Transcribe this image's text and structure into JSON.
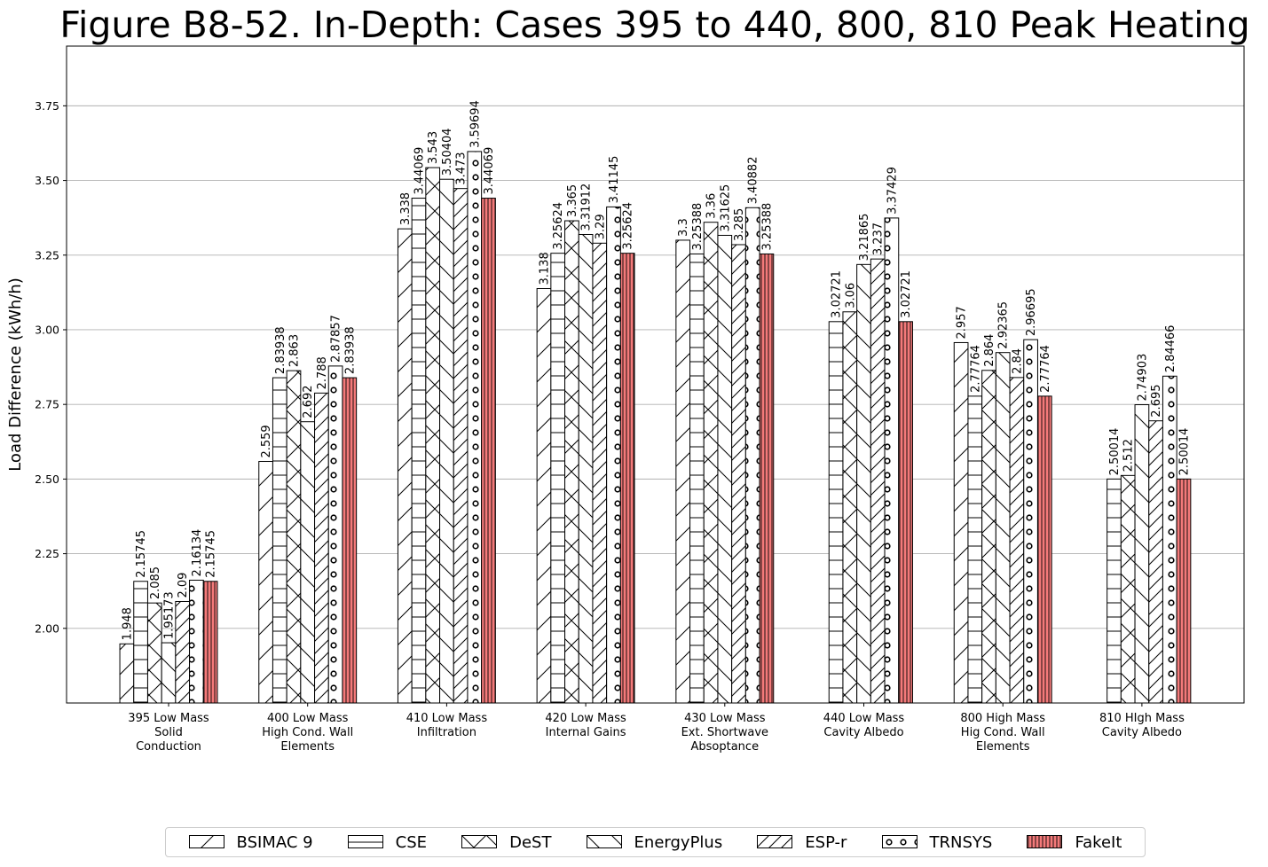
{
  "chart_data": {
    "type": "bar",
    "title": "Figure B8-52. In-Depth: Cases 395 to 440, 800, 810 Peak Heating",
    "xlabel": "",
    "ylabel": "Load Difference (kWh/h)",
    "ylim": [
      1.75,
      3.95
    ],
    "yticks": [
      "2.00",
      "2.25",
      "2.50",
      "2.75",
      "3.00",
      "3.25",
      "3.50",
      "3.75"
    ],
    "grid": true,
    "legend_position": "bottom",
    "categories": [
      [
        "395 Low Mass",
        "Solid",
        "Conduction"
      ],
      [
        "400 Low Mass",
        "High Cond. Wall",
        "Elements"
      ],
      [
        "410 Low Mass",
        "Infiltration"
      ],
      [
        "420 Low Mass",
        "Internal Gains"
      ],
      [
        "430 Low Mass",
        "Ext. Shortwave",
        "Absoptance"
      ],
      [
        "440 Low Mass",
        "Cavity Albedo"
      ],
      [
        "800 High Mass",
        "Hig Cond. Wall",
        "Elements"
      ],
      [
        "810 HIgh Mass",
        "Cavity Albedo"
      ]
    ],
    "series": [
      {
        "name": "BSIMAC 9",
        "hatch": "slash",
        "color": "#ffffff",
        "values": [
          1.948,
          2.559,
          3.338,
          3.138,
          3.3,
          null,
          2.957,
          null
        ],
        "labels": [
          "1.948",
          "2.559",
          "3.338",
          "3.138",
          "3.3",
          "",
          "2.957",
          ""
        ]
      },
      {
        "name": "CSE",
        "hatch": "horizontal",
        "color": "#ffffff",
        "values": [
          2.15745,
          2.83938,
          3.44069,
          3.25624,
          3.25388,
          3.02721,
          2.77764,
          2.50014
        ],
        "labels": [
          "2.15745",
          "2.83938",
          "3.44069",
          "3.25624",
          "3.25388",
          "3.02721",
          "2.77764",
          "2.50014"
        ]
      },
      {
        "name": "DeST",
        "hatch": "cross",
        "color": "#ffffff",
        "values": [
          2.085,
          2.863,
          3.543,
          3.365,
          3.36,
          3.06,
          2.864,
          2.512
        ],
        "labels": [
          "2.085",
          "2.863",
          "3.543",
          "3.365",
          "3.36",
          "3.06",
          "2.864",
          "2.512"
        ]
      },
      {
        "name": "EnergyPlus",
        "hatch": "backslash",
        "color": "#ffffff",
        "values": [
          1.95173,
          2.692,
          3.50404,
          3.31912,
          3.31625,
          3.21865,
          2.92365,
          2.74903
        ],
        "labels": [
          "1.95173",
          "2.692",
          "3.50404",
          "3.31912",
          "3.31625",
          "3.21865",
          "2.92365",
          "2.74903"
        ]
      },
      {
        "name": "ESP-r",
        "hatch": "doubleslash",
        "color": "#ffffff",
        "values": [
          2.09,
          2.788,
          3.473,
          3.29,
          3.285,
          3.237,
          2.84,
          2.695
        ],
        "labels": [
          "2.09",
          "2.788",
          "3.473",
          "3.29",
          "3.285",
          "3.237",
          "2.84",
          "2.695"
        ]
      },
      {
        "name": "TRNSYS",
        "hatch": "circles",
        "color": "#ffffff",
        "values": [
          2.16134,
          2.87857,
          3.59694,
          3.41145,
          3.40882,
          3.37429,
          2.96695,
          2.84466
        ],
        "labels": [
          "2.16134",
          "2.87857",
          "3.59694",
          "3.41145",
          "3.40882",
          "3.37429",
          "2.96695",
          "2.84466"
        ]
      },
      {
        "name": "FakeIt",
        "hatch": "vertical",
        "color": "#f47a7a",
        "values": [
          2.15745,
          2.83938,
          3.44069,
          3.25624,
          3.25388,
          3.02721,
          2.77764,
          2.50014
        ],
        "labels": [
          "2.15745",
          "2.83938",
          "3.44069",
          "3.25624",
          "3.25388",
          "3.02721",
          "2.77764",
          "2.50014"
        ]
      }
    ]
  }
}
